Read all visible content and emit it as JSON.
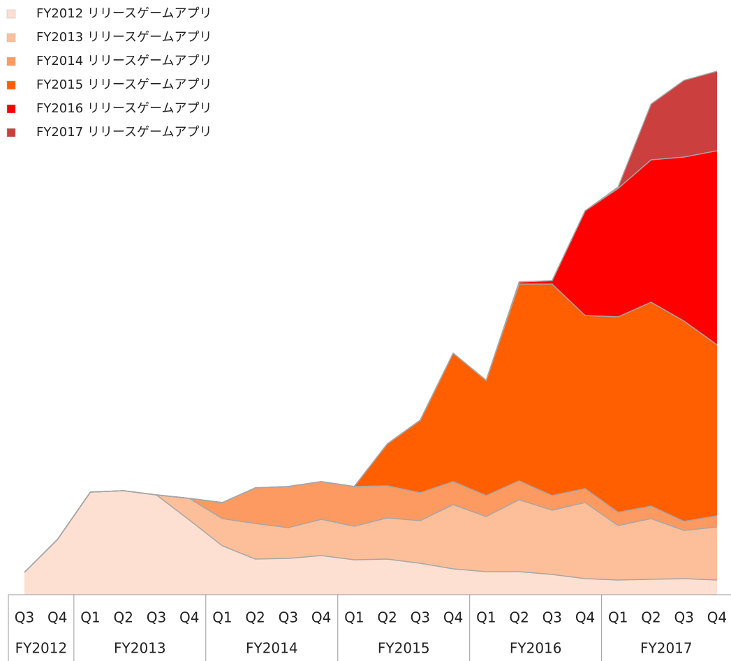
{
  "chart_data": {
    "type": "stacked_area",
    "groups": [
      {
        "name": "FY2012",
        "quarters": [
          "Q3",
          "Q4"
        ]
      },
      {
        "name": "FY2013",
        "quarters": [
          "Q1",
          "Q2",
          "Q3",
          "Q4"
        ]
      },
      {
        "name": "FY2014",
        "quarters": [
          "Q1",
          "Q2",
          "Q3",
          "Q4"
        ]
      },
      {
        "name": "FY2015",
        "quarters": [
          "Q1",
          "Q2",
          "Q3",
          "Q4"
        ]
      },
      {
        "name": "FY2016",
        "quarters": [
          "Q1",
          "Q2",
          "Q3",
          "Q4"
        ]
      },
      {
        "name": "FY2017",
        "quarters": [
          "Q1",
          "Q2",
          "Q3",
          "Q4"
        ]
      }
    ],
    "series": [
      {
        "name": "FY2012 リリースゲームアプリ",
        "color": "#fde0d2",
        "values": [
          32,
          79,
          147,
          149,
          143,
          107,
          70,
          51,
          52,
          56,
          50,
          51,
          45,
          37,
          33,
          33,
          29,
          23,
          21,
          22,
          23,
          21
        ]
      },
      {
        "name": "FY2013 リリースゲームアプリ",
        "color": "#fcbf9a",
        "values": [
          0,
          0,
          0,
          0,
          0,
          31,
          39,
          51,
          44,
          52,
          48,
          59,
          61,
          92,
          79,
          103,
          92,
          109,
          78,
          87,
          69,
          76
        ]
      },
      {
        "name": "FY2014 リリースゲームアプリ",
        "color": "#fc9a62",
        "values": [
          0,
          0,
          0,
          0,
          0,
          0,
          23,
          51,
          59,
          54,
          57,
          46,
          40,
          33,
          30,
          27,
          21,
          20,
          19,
          18,
          13,
          16
        ]
      },
      {
        "name": "FY2015 リリースゲームアプリ",
        "color": "#ff5f00",
        "values": [
          0,
          0,
          0,
          0,
          0,
          0,
          0,
          0,
          0,
          0,
          0,
          60,
          104,
          184,
          165,
          282,
          303,
          248,
          280,
          292,
          287,
          245
        ]
      },
      {
        "name": "FY2016 リリースゲームアプリ",
        "color": "#ff0000",
        "values": [
          0,
          0,
          0,
          0,
          0,
          0,
          0,
          0,
          0,
          0,
          0,
          0,
          0,
          0,
          0,
          3,
          5,
          150,
          184,
          204,
          235,
          278
        ]
      },
      {
        "name": "FY2017 リリースゲームアプリ",
        "color": "#cc3f3f",
        "values": [
          0,
          0,
          0,
          0,
          0,
          0,
          0,
          0,
          0,
          0,
          0,
          0,
          0,
          0,
          0,
          0,
          0,
          0,
          2,
          80,
          110,
          114
        ]
      }
    ]
  }
}
